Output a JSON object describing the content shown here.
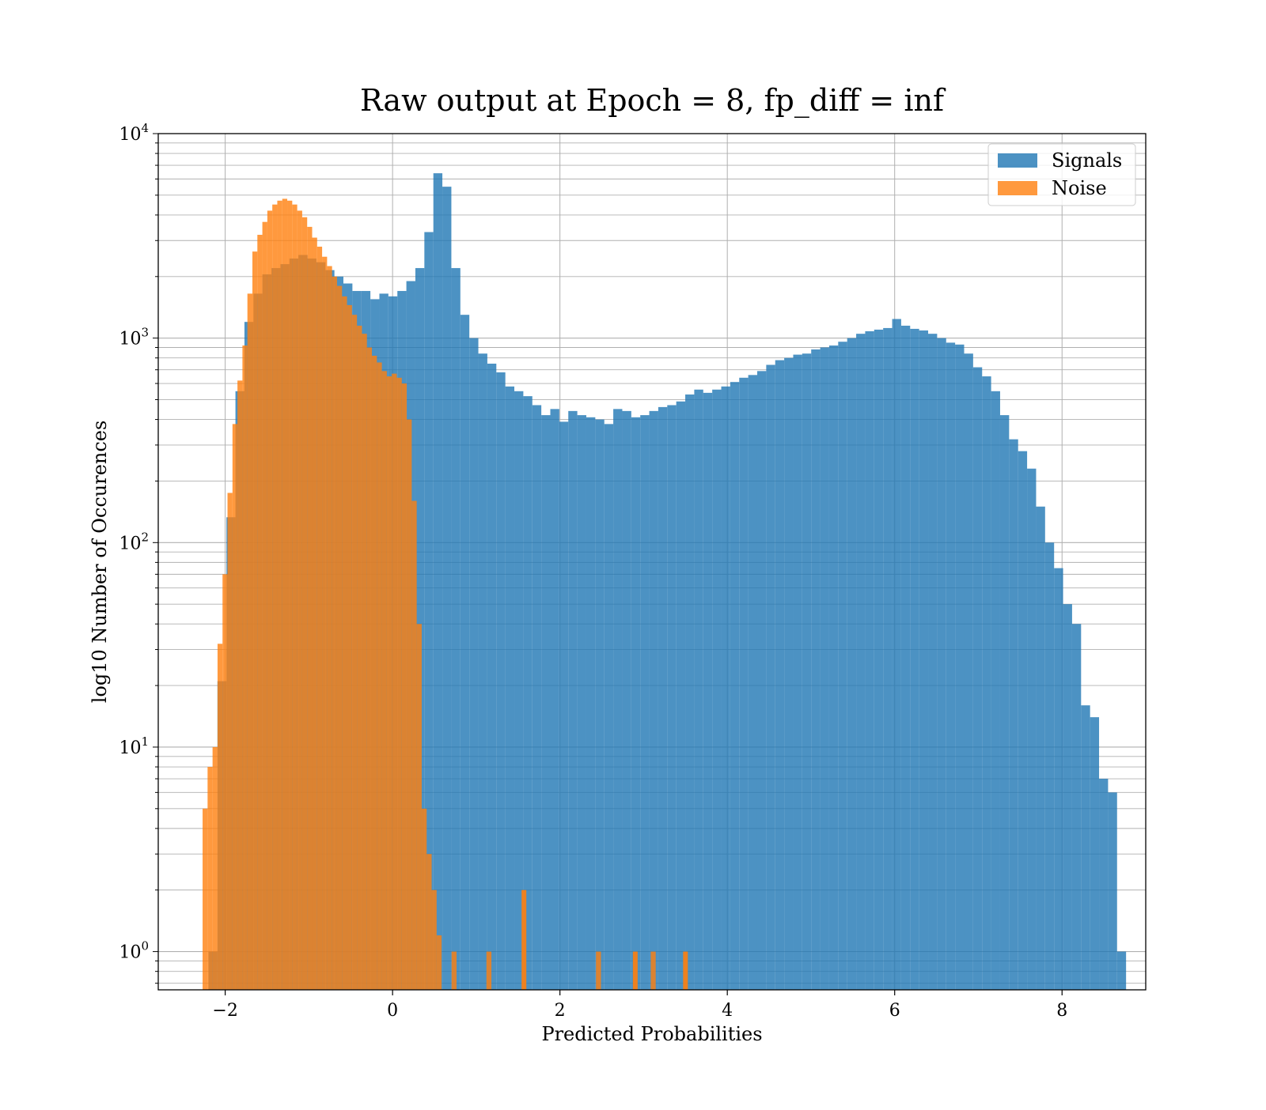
{
  "chart_data": {
    "type": "histogram",
    "title": "Raw output at Epoch = 8, fp_diff = inf",
    "xlabel": "Predicted Probabilities",
    "ylabel": "log10 Number of Occurences",
    "xlim": [
      -2.8,
      9.0
    ],
    "ylim": [
      0.65,
      10000
    ],
    "yscale": "log",
    "grid": true,
    "legend_position": "top-right",
    "x_ticks": [
      -2,
      0,
      2,
      4,
      6,
      8
    ],
    "x_tick_labels": [
      "−2",
      "0",
      "2",
      "4",
      "6",
      "8"
    ],
    "y_ticks": [
      1,
      10,
      100,
      1000,
      10000
    ],
    "y_tick_labels": [
      {
        "base": "10",
        "exp": "0"
      },
      {
        "base": "10",
        "exp": "1"
      },
      {
        "base": "10",
        "exp": "2"
      },
      {
        "base": "10",
        "exp": "3"
      },
      {
        "base": "10",
        "exp": "4"
      }
    ],
    "series": [
      {
        "name": "Signals",
        "color": "#1f77b4",
        "opacity": 0.8,
        "bin_start": -2.2,
        "bin_width": 0.1075,
        "counts": [
          1,
          21,
          133,
          550,
          1200,
          1650,
          2050,
          2200,
          2300,
          2450,
          2550,
          2450,
          2350,
          2150,
          2000,
          1850,
          1700,
          1700,
          1550,
          1650,
          1600,
          1700,
          1900,
          2200,
          3300,
          6400,
          5500,
          2200,
          1300,
          1000,
          840,
          750,
          680,
          580,
          550,
          520,
          470,
          420,
          450,
          390,
          440,
          420,
          410,
          400,
          380,
          450,
          440,
          410,
          420,
          440,
          460,
          470,
          490,
          530,
          560,
          540,
          560,
          580,
          610,
          640,
          660,
          690,
          740,
          780,
          800,
          830,
          840,
          880,
          900,
          920,
          960,
          1000,
          1050,
          1080,
          1100,
          1120,
          1240,
          1150,
          1110,
          1090,
          1050,
          1000,
          950,
          930,
          840,
          720,
          650,
          550,
          420,
          320,
          280,
          230,
          150,
          100,
          75,
          50,
          40,
          16,
          14,
          7,
          6,
          1
        ]
      },
      {
        "name": "Noise",
        "color": "#ff7f0e",
        "opacity": 0.8,
        "bin_start": -2.27,
        "bin_width": 0.0595,
        "counts": [
          5,
          8,
          10,
          32,
          70,
          175,
          380,
          620,
          920,
          1650,
          2650,
          3200,
          3700,
          4200,
          4500,
          4700,
          4800,
          4700,
          4500,
          4200,
          3900,
          3500,
          3100,
          2800,
          2500,
          2250,
          2000,
          1800,
          1600,
          1450,
          1300,
          1150,
          1050,
          900,
          820,
          760,
          690,
          650,
          670,
          640,
          600,
          400,
          160,
          40,
          5,
          3,
          2,
          1.2,
          0,
          0,
          1,
          0,
          0,
          0,
          0,
          0,
          0,
          1,
          0,
          0,
          0,
          0,
          0,
          0,
          0,
          0,
          0,
          0,
          0,
          0,
          0,
          0,
          0,
          0,
          0,
          0,
          0,
          0,
          0,
          1,
          0,
          0,
          0,
          0,
          0,
          0,
          0,
          0,
          0,
          0,
          1
        ],
        "isolated_bars": [
          {
            "x": 1.57,
            "count": 2
          },
          {
            "x": 2.9,
            "count": 1
          },
          {
            "x": 3.5,
            "count": 1
          }
        ]
      }
    ]
  }
}
